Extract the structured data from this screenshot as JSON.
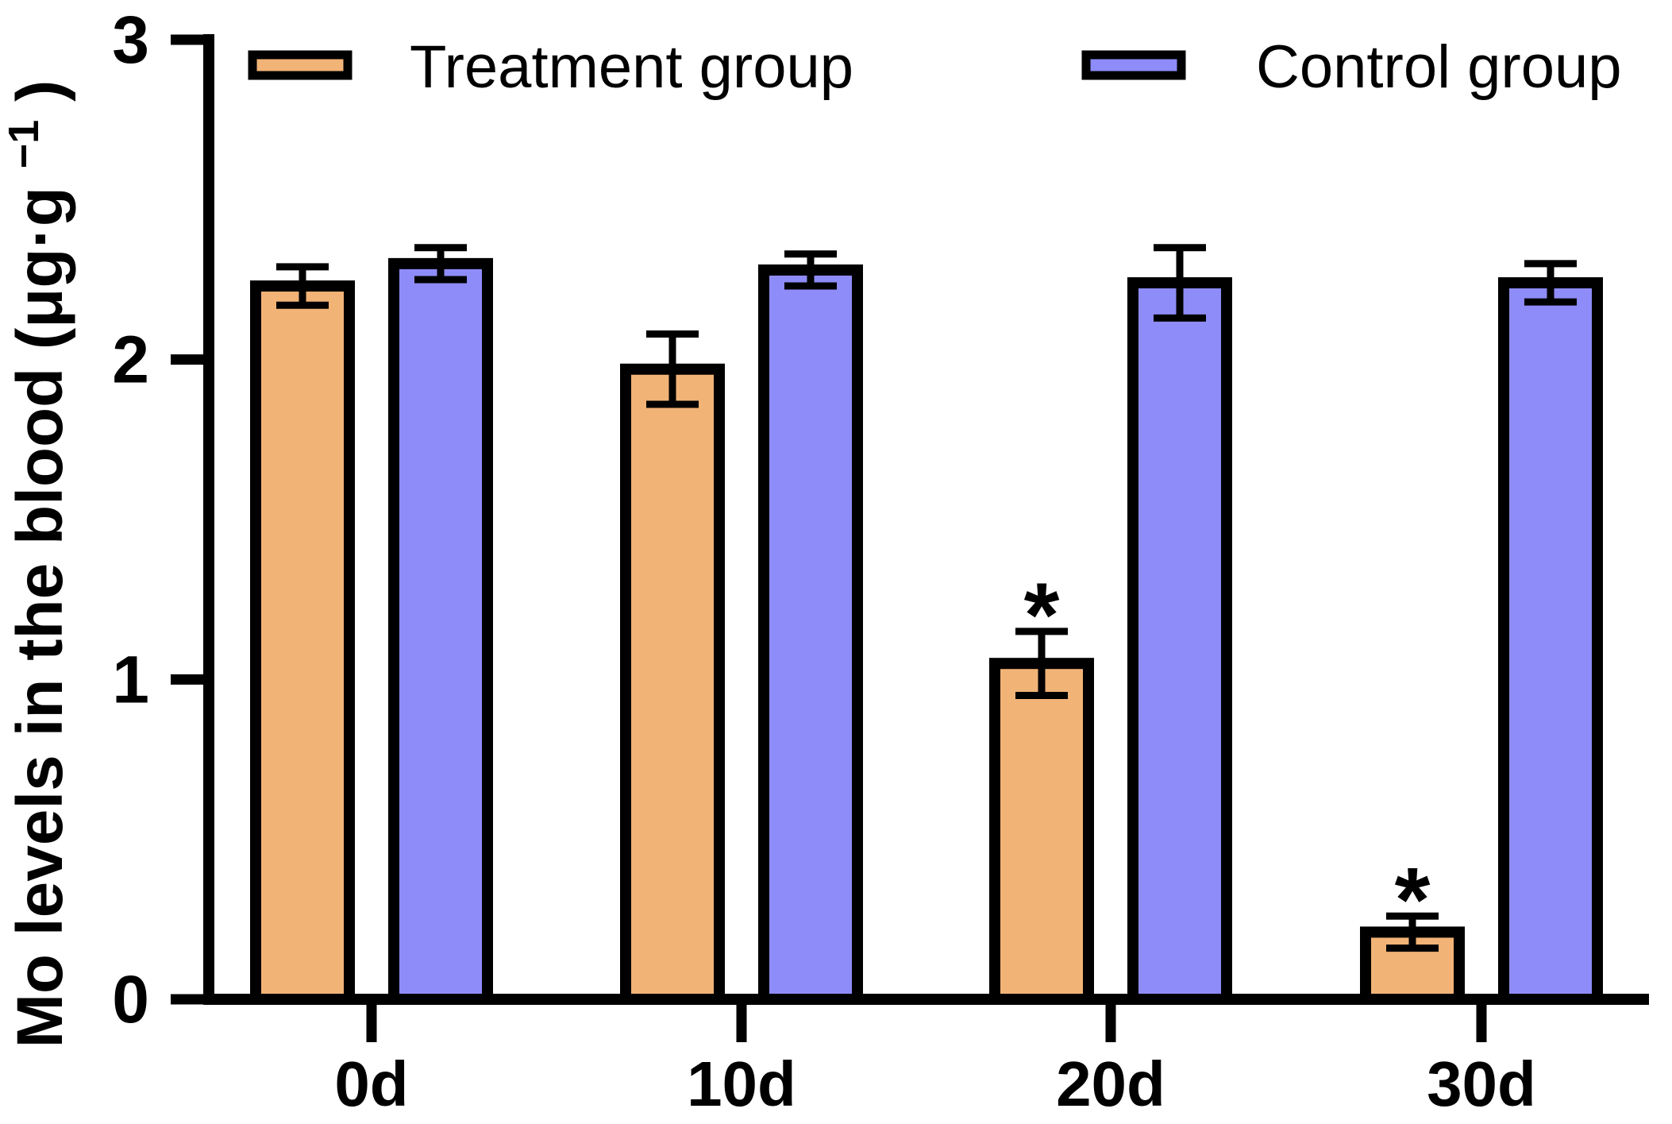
{
  "chart_data": {
    "type": "bar",
    "title": "",
    "ylabel": "Mo levels in the blood (μg·g⁻¹)",
    "ylabel_parts": {
      "text": "Mo levels in the blood (μg·g",
      "sup": "−1",
      "suffix": ")"
    },
    "xlabel": "",
    "categories": [
      "0d",
      "10d",
      "20d",
      "30d"
    ],
    "series": [
      {
        "name": "Treatment group",
        "color": "#F2B377",
        "values": [
          2.23,
          1.97,
          1.05,
          0.21
        ],
        "errors": [
          0.06,
          0.11,
          0.1,
          0.05
        ]
      },
      {
        "name": "Control group",
        "color": "#8E8CF8",
        "values": [
          2.3,
          2.28,
          2.24,
          2.24
        ],
        "errors": [
          0.05,
          0.05,
          0.11,
          0.06
        ]
      }
    ],
    "error_bars": "plus-minus, capped",
    "annotations": [
      {
        "text": "*",
        "category": "20d",
        "series": "Treatment group"
      },
      {
        "text": "*",
        "category": "30d",
        "series": "Treatment group"
      }
    ],
    "yticks": [
      0,
      1,
      2,
      3
    ],
    "ylim": [
      0,
      3
    ],
    "grid": false,
    "legend_position": "top",
    "axis_color": "#000000",
    "background_color": "#ffffff"
  }
}
